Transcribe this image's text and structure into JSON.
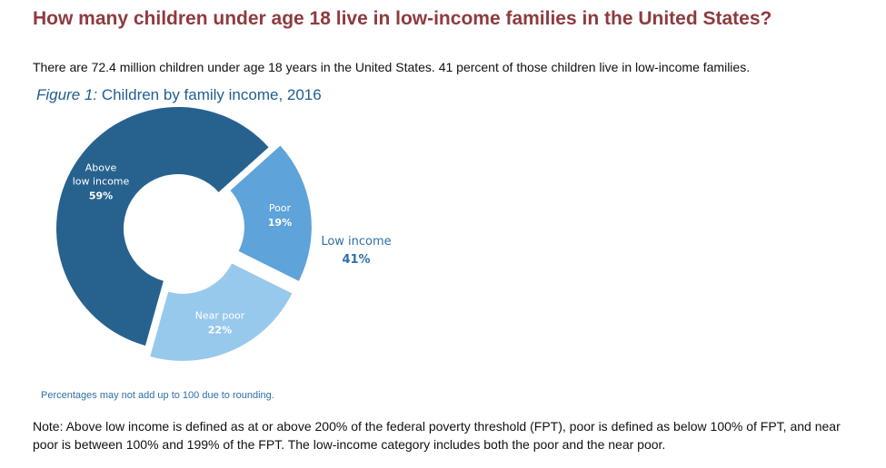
{
  "page": {
    "headline": "How many children under age 18 live in low-income families in the United States?",
    "intro": "There are 72.4 million children under age 18 years in the United States. 41 percent of those children live in low-income families.",
    "footnote": "Percentages may not add up to 100 due to rounding.",
    "note": "Note: Above low income is defined as at or above 200% of the federal poverty threshold (FPT), poor is defined as below 100% of FPT, and near poor is between 100% and 199% of the FPT. The low-income category includes both the poor and the near poor."
  },
  "chart_data": {
    "type": "pie",
    "title_prefix": "Figure 1:",
    "title": "Children by family income, 2016",
    "categories": [
      "Poor",
      "Near poor",
      "Above low income"
    ],
    "values": [
      19,
      22,
      59
    ],
    "unit": "%",
    "colors": [
      "#5ea3d9",
      "#97c9ec",
      "#27628f"
    ],
    "group": {
      "label": "Low income",
      "value": 41,
      "members": [
        "Poor",
        "Near poor"
      ],
      "color": "#2f6fa6"
    },
    "slice_label_lines": [
      [
        "Poor"
      ],
      [
        "Near poor"
      ],
      [
        "Above",
        "low income"
      ]
    ],
    "label_colors": [
      "#ffffff",
      "#ffffff",
      "#ffffff"
    ]
  }
}
